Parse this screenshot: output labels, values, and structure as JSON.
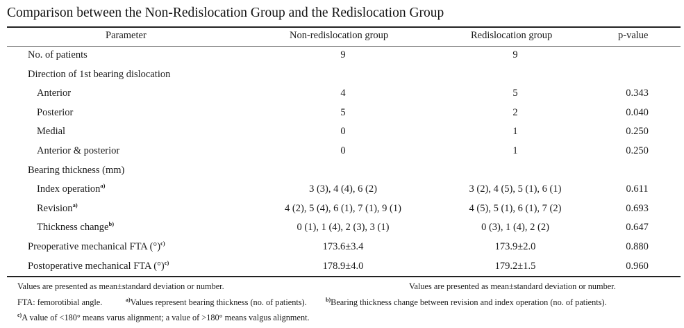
{
  "title": "Comparison between the Non-Redislocation Group and the Redislocation Group",
  "columns": [
    "Parameter",
    "Non-redislocation group",
    "Redislocation group",
    "p-value"
  ],
  "rows": [
    {
      "param": "No. of patients",
      "sup": "",
      "indent": false,
      "non": "9",
      "redis": "9",
      "p": ""
    },
    {
      "param": "Direction of 1st bearing dislocation",
      "sup": "",
      "indent": false,
      "non": "",
      "redis": "",
      "p": ""
    },
    {
      "param": "Anterior",
      "sup": "",
      "indent": true,
      "non": "4",
      "redis": "5",
      "p": "0.343"
    },
    {
      "param": "Posterior",
      "sup": "",
      "indent": true,
      "non": "5",
      "redis": "2",
      "p": "0.040"
    },
    {
      "param": "Medial",
      "sup": "",
      "indent": true,
      "non": "0",
      "redis": "1",
      "p": "0.250"
    },
    {
      "param": "Anterior & posterior",
      "sup": "",
      "indent": true,
      "non": "0",
      "redis": "1",
      "p": "0.250"
    },
    {
      "param": "Bearing thickness (mm)",
      "sup": "",
      "indent": false,
      "non": "",
      "redis": "",
      "p": ""
    },
    {
      "param": "Index operation",
      "sup": "a)",
      "indent": true,
      "non": "3 (3), 4 (4), 6 (2)",
      "redis": "3 (2), 4 (5), 5 (1), 6 (1)",
      "p": "0.611"
    },
    {
      "param": "Revision",
      "sup": "a)",
      "indent": true,
      "non": "4 (2), 5 (4), 6 (1), 7 (1), 9 (1)",
      "redis": "4 (5), 5 (1), 6 (1), 7 (2)",
      "p": "0.693"
    },
    {
      "param": "Thickness change",
      "sup": "b)",
      "indent": true,
      "non": "0 (1), 1 (4), 2 (3), 3 (1)",
      "redis": "0 (3), 1 (4), 2 (2)",
      "p": "0.647"
    },
    {
      "param": "Preoperative mechanical FTA (°)",
      "sup": "c)",
      "indent": false,
      "non": "173.6±3.4",
      "redis": "173.9±2.0",
      "p": "0.880"
    },
    {
      "param": "Postoperative mechanical FTA (°)",
      "sup": "c)",
      "indent": false,
      "non": "178.9±4.0",
      "redis": "179.2±1.5",
      "p": "0.960"
    }
  ],
  "footnotes": {
    "values_note": "Values are presented as mean±standard deviation or number.",
    "values_note_repeat": "Values are presented as mean±standard deviation or number.",
    "fta": "FTA: femorotibial angle.",
    "a_mark": "a)",
    "a_text": "Values represent bearing thickness (no. of patients).",
    "b_mark": "b)",
    "b_text": "Bearing thickness change between revision and index operation (no. of patients).",
    "c_mark": "c)",
    "c_text": "A value of <180° means varus alignment; a value of >180° means valgus alignment."
  }
}
